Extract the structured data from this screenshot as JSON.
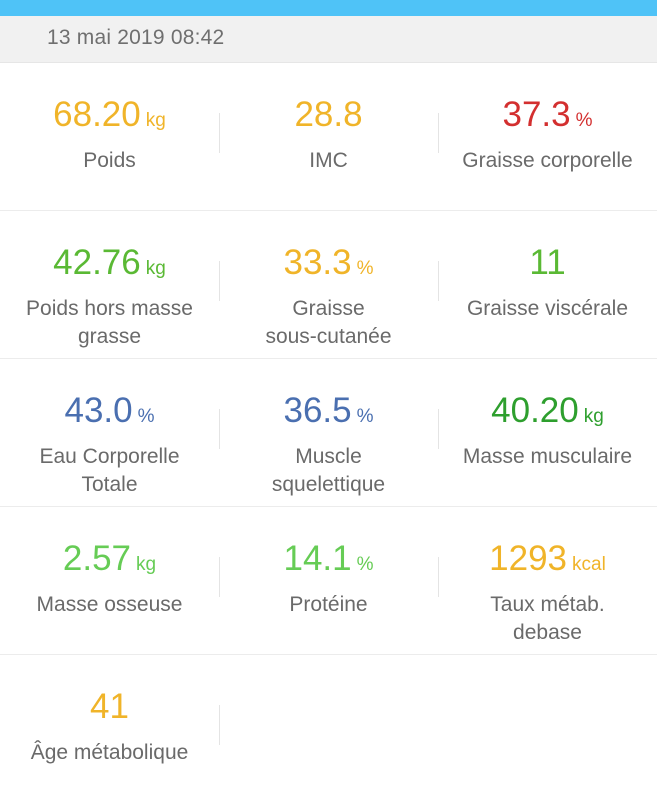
{
  "header": {
    "date": "13 mai 2019 08:42"
  },
  "colors": {
    "topbar": "#4fc3f7",
    "yellow": "#f0b429",
    "red": "#d32f2f",
    "green": "#5ab934",
    "darkgreen": "#2e9f2e",
    "lightgreen": "#66cc55",
    "blue": "#4a6fb0",
    "label": "#6a6a6a"
  },
  "metrics": [
    {
      "value": "68.20",
      "unit": "kg",
      "label": "Poids",
      "color": "#f0b429"
    },
    {
      "value": "28.8",
      "unit": "",
      "label": "IMC",
      "color": "#f0b429"
    },
    {
      "value": "37.3",
      "unit": "%",
      "label": "Graisse corporelle",
      "color": "#d32f2f"
    },
    {
      "value": "42.76",
      "unit": "kg",
      "label": "Poids hors masse\ngrasse",
      "color": "#5ab934"
    },
    {
      "value": "33.3",
      "unit": "%",
      "label": "Graisse\nsous-cutanée",
      "color": "#f0b429"
    },
    {
      "value": "11",
      "unit": "",
      "label": "Graisse viscérale",
      "color": "#5ab934"
    },
    {
      "value": "43.0",
      "unit": "%",
      "label": "Eau Corporelle\nTotale",
      "color": "#4a6fb0"
    },
    {
      "value": "36.5",
      "unit": "%",
      "label": "Muscle\nsquelettique",
      "color": "#4a6fb0"
    },
    {
      "value": "40.20",
      "unit": "kg",
      "label": "Masse musculaire",
      "color": "#2e9f2e"
    },
    {
      "value": "2.57",
      "unit": "kg",
      "label": "Masse osseuse",
      "color": "#66cc55"
    },
    {
      "value": "14.1",
      "unit": "%",
      "label": "Protéine",
      "color": "#66cc55"
    },
    {
      "value": "1293",
      "unit": "kcal",
      "label": "Taux métab.\ndebase",
      "color": "#f0b429"
    },
    {
      "value": "41",
      "unit": "",
      "label": "Âge métabolique",
      "color": "#f0b429"
    }
  ]
}
